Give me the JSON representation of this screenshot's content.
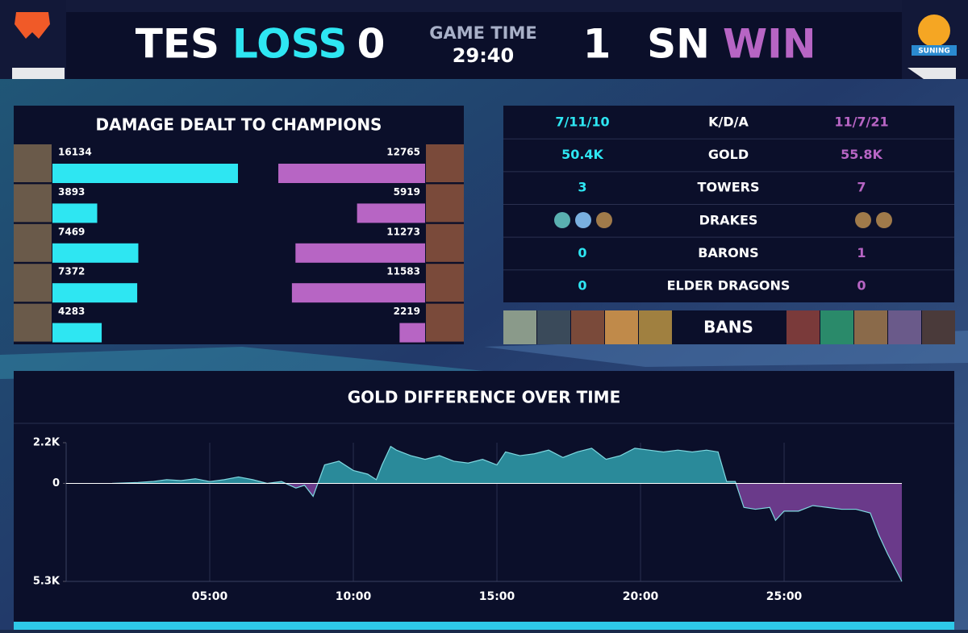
{
  "header": {
    "team1": "TES",
    "result1": "LOSS",
    "score1": 0,
    "game_time_label": "GAME TIME",
    "game_time": "29:40",
    "score2": 1,
    "team2": "SN",
    "result2": "WIN",
    "logo2_text": "SUNING"
  },
  "damage": {
    "title": "DAMAGE DEALT TO CHAMPIONS",
    "team1": [
      16134,
      3893,
      7469,
      7372,
      4283
    ],
    "team2": [
      12765,
      5919,
      11273,
      11583,
      2219
    ],
    "color1": "#2ee6f2",
    "color2": "#b765c4"
  },
  "stats": {
    "rows": [
      {
        "team1": "7/11/10",
        "label": "K/D/A",
        "team2": "11/7/21"
      },
      {
        "team1": "50.4K",
        "label": "GOLD",
        "team2": "55.8K"
      },
      {
        "team1": "3",
        "label": "TOWERS",
        "team2": "7"
      },
      {
        "label": "DRAKES"
      },
      {
        "team1": "0",
        "label": "BARONS",
        "team2": "1"
      },
      {
        "team1": "0",
        "label": "ELDER DRAGONS",
        "team2": "0"
      }
    ]
  },
  "bans": {
    "label": "BANS"
  },
  "gold_chart": {
    "type": "area",
    "title": "GOLD DIFFERENCE OVER TIME",
    "x": [
      1.6,
      2.5,
      3.0,
      3.5,
      4.0,
      4.5,
      5.0,
      5.5,
      6.0,
      6.5,
      7.0,
      7.5,
      8.0,
      8.3,
      8.6,
      9.0,
      9.5,
      10.0,
      10.5,
      10.8,
      11.0,
      11.3,
      11.5,
      12.0,
      12.5,
      13.0,
      13.5,
      14.0,
      14.5,
      15.0,
      15.3,
      15.8,
      16.3,
      16.8,
      17.3,
      17.8,
      18.3,
      18.8,
      19.3,
      19.8,
      20.3,
      20.8,
      21.3,
      21.8,
      22.3,
      22.7,
      23.0,
      23.3,
      23.6,
      24.0,
      24.5,
      24.7,
      25.0,
      25.5,
      26.0,
      26.5,
      27.0,
      27.5,
      28.0,
      28.3,
      28.6,
      28.9,
      29.1
    ],
    "values": [
      0,
      50,
      100,
      200,
      150,
      250,
      100,
      200,
      350,
      200,
      0,
      100,
      -250,
      -100,
      -700,
      1000,
      1200,
      700,
      500,
      200,
      1000,
      2000,
      1800,
      1500,
      1300,
      1500,
      1200,
      1100,
      1300,
      1000,
      1700,
      1500,
      1600,
      1800,
      1400,
      1700,
      1900,
      1300,
      1500,
      1900,
      1800,
      1700,
      1800,
      1700,
      1800,
      1700,
      100,
      100,
      -1300,
      -1400,
      -1300,
      -2000,
      -1500,
      -1500,
      -1200,
      -1300,
      -1400,
      -1400,
      -1600,
      -2800,
      -3800,
      -4700,
      -5300
    ],
    "xlim": [
      0,
      29.1
    ],
    "ylim": [
      -5300,
      2200
    ],
    "xticks": [
      {
        "value": 5,
        "label": "05:00"
      },
      {
        "value": 10,
        "label": "10:00"
      },
      {
        "value": 15,
        "label": "15:00"
      },
      {
        "value": 20,
        "label": "20:00"
      },
      {
        "value": 25,
        "label": "25:00"
      }
    ],
    "yticks": [
      {
        "value": 2200,
        "label": "2.2K"
      },
      0,
      {
        "value": -5300,
        "label": "5.3K"
      }
    ],
    "color_pos": "#2a8a9a",
    "color_neg": "#6a3a8a"
  }
}
